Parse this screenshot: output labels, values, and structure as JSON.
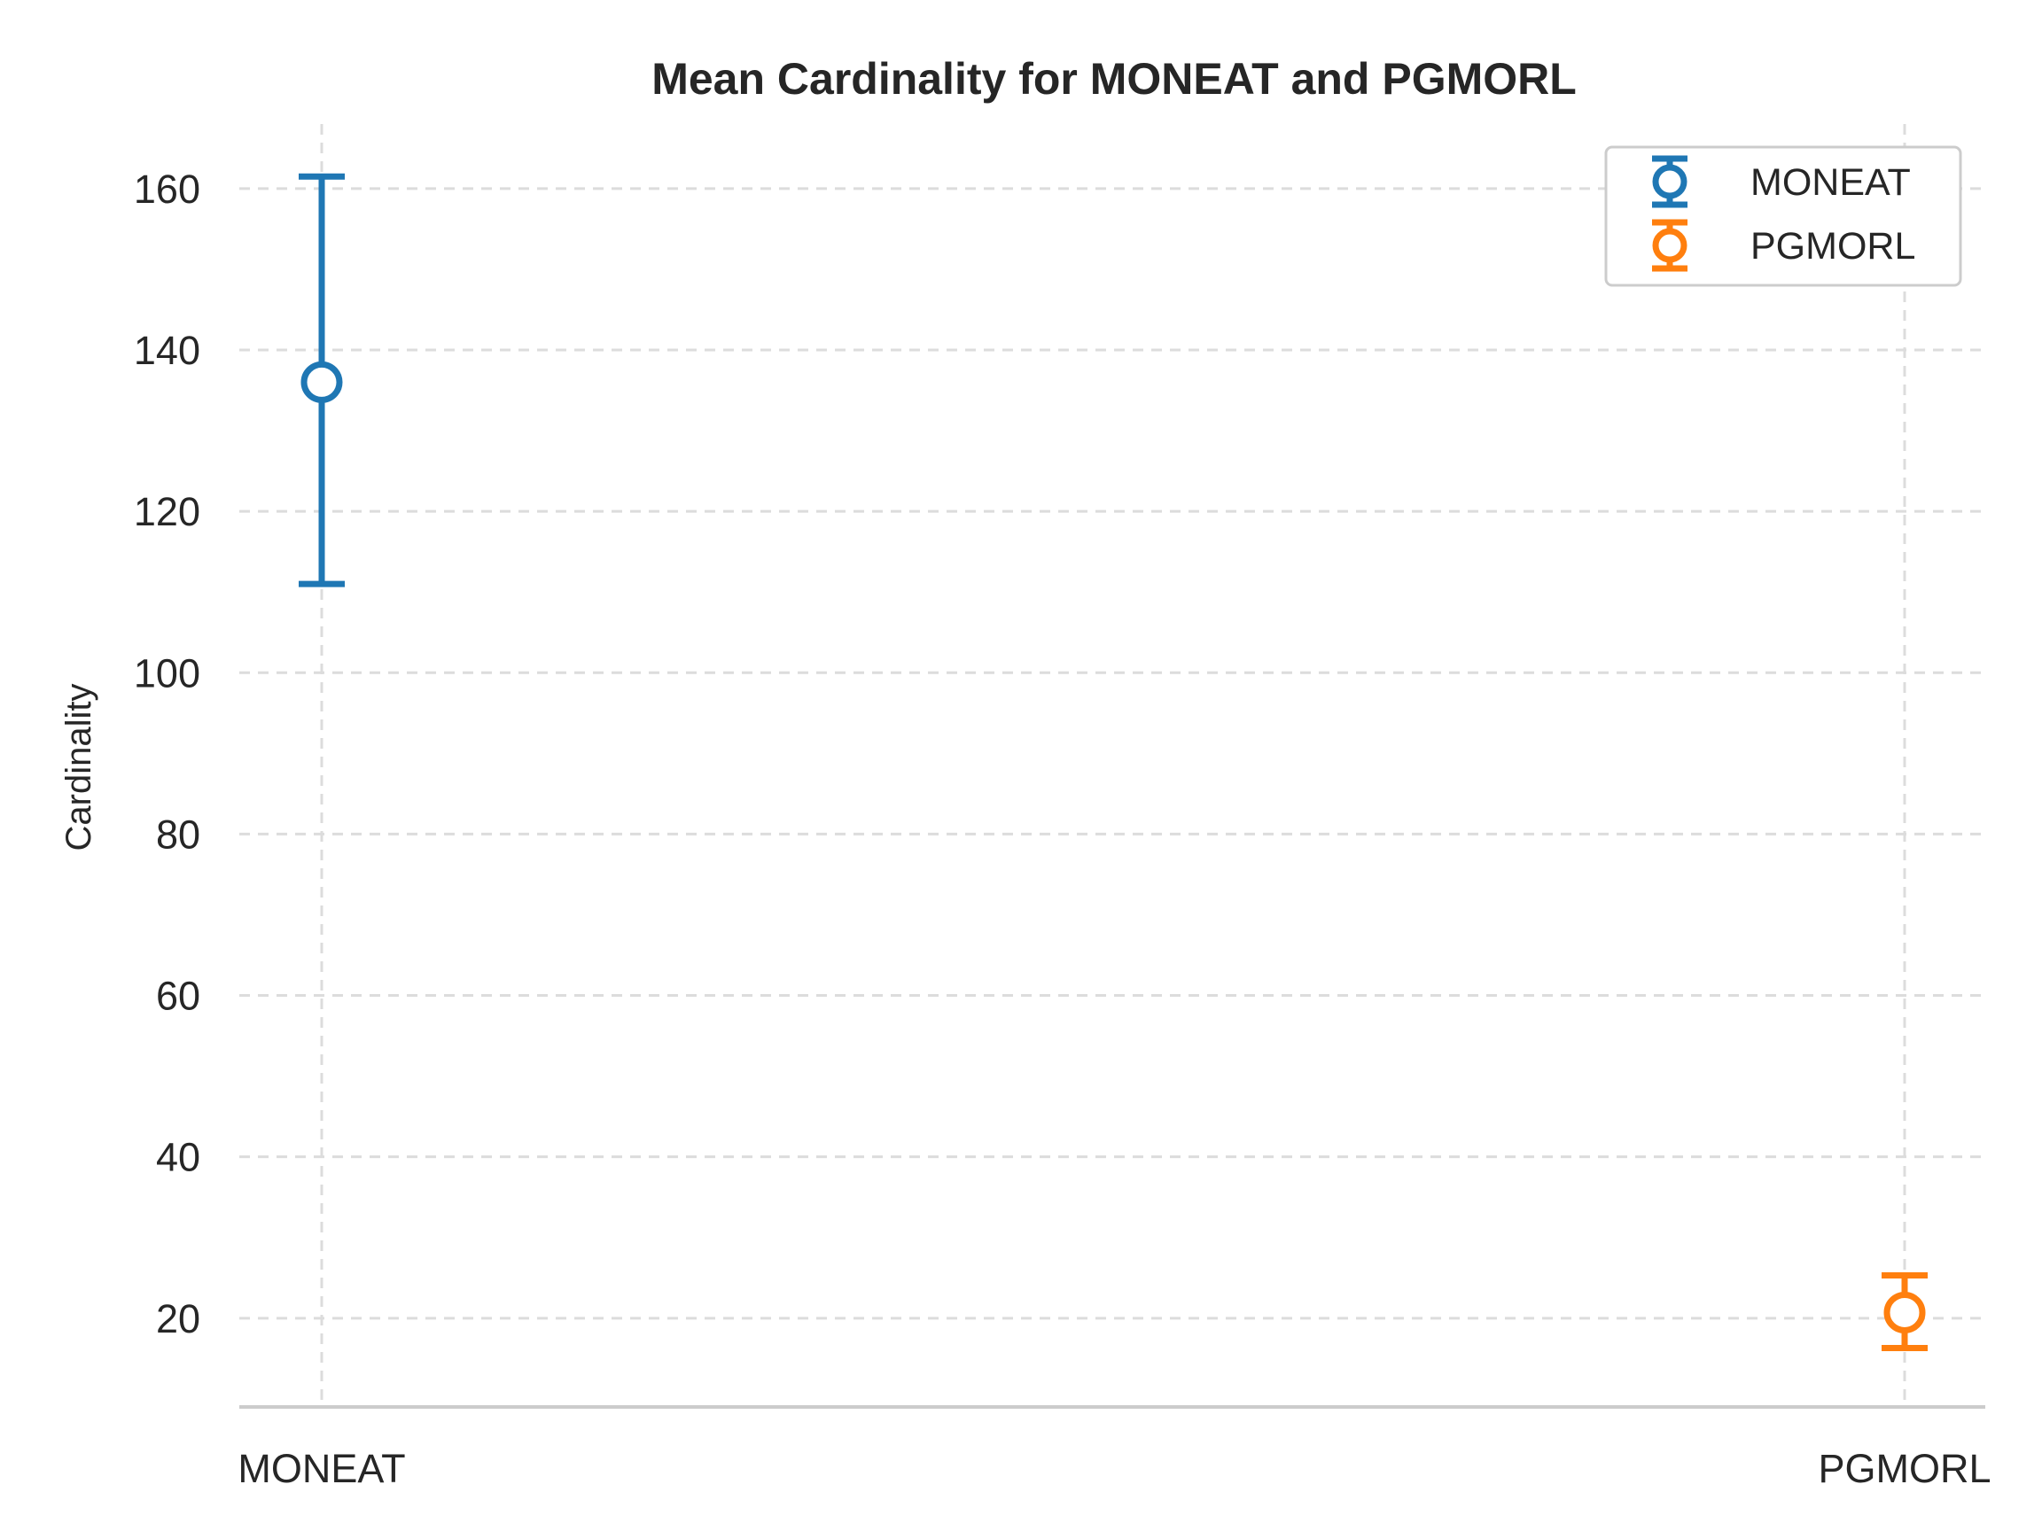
{
  "chart_data": {
    "type": "scatter",
    "title": "Mean Cardinality for MONEAT and PGMORL",
    "xlabel": "",
    "ylabel": "Cardinality",
    "categories": [
      "MONEAT",
      "PGMORL"
    ],
    "ylim": [
      9,
      168
    ],
    "yticks": [
      20,
      40,
      60,
      80,
      100,
      120,
      140,
      160
    ],
    "grid": true,
    "legend_position": "top-right",
    "series": [
      {
        "name": "MONEAT",
        "x": "MONEAT",
        "value": 136,
        "err_low": 111,
        "err_high": 161.5,
        "color": "#1f77b4"
      },
      {
        "name": "PGMORL",
        "x": "PGMORL",
        "value": 20.7,
        "err_low": 16.3,
        "err_high": 25.3,
        "color": "#ff7f0e"
      }
    ]
  }
}
